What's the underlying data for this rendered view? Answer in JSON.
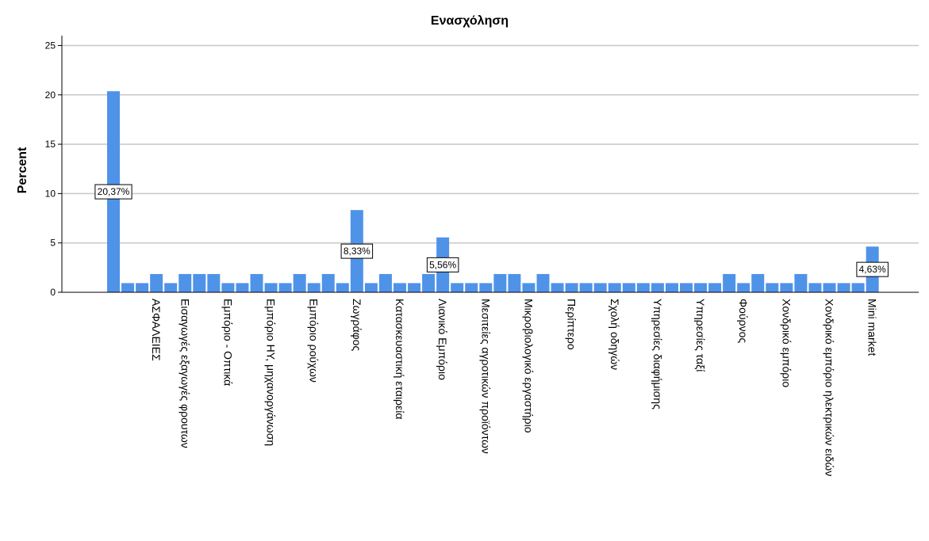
{
  "chart_data": {
    "type": "bar",
    "title": "Ενασχόληση",
    "ylabel": "Percent",
    "xlabel": "",
    "ylim": [
      0,
      26
    ],
    "yticks": [
      0,
      5,
      10,
      15,
      20,
      25
    ],
    "grid": true,
    "bar_color": "#4f93e8",
    "bars": [
      {
        "label": "",
        "value": 20.37,
        "data_label": "20,37%"
      },
      {
        "label": "",
        "value": 0.93
      },
      {
        "label": "",
        "value": 0.93
      },
      {
        "label": "ΑΣΦΑΛΕΙΕΣ",
        "value": 1.85
      },
      {
        "label": "",
        "value": 0.93
      },
      {
        "label": "Εισαγωγές εξαγωγές φρουτων",
        "value": 1.85
      },
      {
        "label": "",
        "value": 1.85
      },
      {
        "label": "",
        "value": 1.85
      },
      {
        "label": "Εμπόριο - Οπτικά",
        "value": 0.93
      },
      {
        "label": "",
        "value": 0.93
      },
      {
        "label": "",
        "value": 1.85
      },
      {
        "label": "Εμπόριο ΗΥ, μηχανοργάνωση",
        "value": 0.93
      },
      {
        "label": "",
        "value": 0.93
      },
      {
        "label": "",
        "value": 1.85
      },
      {
        "label": "Εμπόριο ρούχων",
        "value": 0.93
      },
      {
        "label": "",
        "value": 1.85
      },
      {
        "label": "",
        "value": 0.93
      },
      {
        "label": "Ζωγράφος",
        "value": 8.33,
        "data_label": "8,33%"
      },
      {
        "label": "",
        "value": 0.93
      },
      {
        "label": "",
        "value": 1.85
      },
      {
        "label": "Κατασκευαστική εταιρεία",
        "value": 0.93
      },
      {
        "label": "",
        "value": 0.93
      },
      {
        "label": "",
        "value": 1.85
      },
      {
        "label": "Λιανικό Εμπόριο",
        "value": 5.56,
        "data_label": "5,56%"
      },
      {
        "label": "",
        "value": 0.93
      },
      {
        "label": "",
        "value": 0.93
      },
      {
        "label": "Μεσιτείες αγροτικών προϊόντων",
        "value": 0.93
      },
      {
        "label": "",
        "value": 1.85
      },
      {
        "label": "",
        "value": 1.85
      },
      {
        "label": "Μικροβιολογικό εργαστήριο",
        "value": 0.93
      },
      {
        "label": "",
        "value": 1.85
      },
      {
        "label": "",
        "value": 0.93
      },
      {
        "label": "Περίπτερο",
        "value": 0.93
      },
      {
        "label": "",
        "value": 0.93
      },
      {
        "label": "",
        "value": 0.93
      },
      {
        "label": "Σχολή οδηγών",
        "value": 0.93
      },
      {
        "label": "",
        "value": 0.93
      },
      {
        "label": "",
        "value": 0.93
      },
      {
        "label": "Υπηρεσίες διαφήμισης",
        "value": 0.93
      },
      {
        "label": "",
        "value": 0.93
      },
      {
        "label": "",
        "value": 0.93
      },
      {
        "label": "Υπηρεσίες ταξί",
        "value": 0.93
      },
      {
        "label": "",
        "value": 0.93
      },
      {
        "label": "",
        "value": 1.85
      },
      {
        "label": "Φούρνος",
        "value": 0.93
      },
      {
        "label": "",
        "value": 1.85
      },
      {
        "label": "",
        "value": 0.93
      },
      {
        "label": "Χονδρικό εμπόριο",
        "value": 0.93
      },
      {
        "label": "",
        "value": 1.85
      },
      {
        "label": "",
        "value": 0.93
      },
      {
        "label": "Χονδρικό εμπόριο ηλεκτρικών ειδών",
        "value": 0.93
      },
      {
        "label": "",
        "value": 0.93
      },
      {
        "label": "",
        "value": 0.93
      },
      {
        "label": "Mini market",
        "value": 4.63,
        "data_label": "4,63%"
      }
    ]
  }
}
